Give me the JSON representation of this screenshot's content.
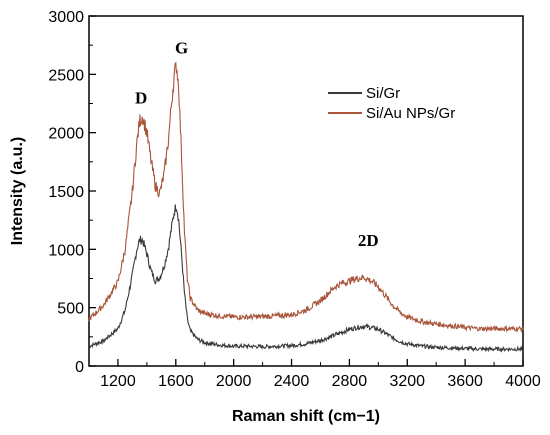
{
  "chart_data": {
    "type": "line",
    "xlabel": "Raman shift (cm−1)",
    "ylabel": "Intensity (a.u.)",
    "xlim": [
      1000,
      4000
    ],
    "ylim": [
      0,
      3000
    ],
    "xticks": [
      1200,
      1600,
      2000,
      2400,
      2800,
      3200,
      3600,
      4000
    ],
    "yticks": [
      0,
      500,
      1000,
      1500,
      2000,
      2500,
      3000
    ],
    "legend_position": "top-right",
    "grid": false,
    "annotations": [
      {
        "text": "D",
        "x": 1360,
        "y": 2250
      },
      {
        "text": "G",
        "x": 1640,
        "y": 2680
      },
      {
        "text": "2D",
        "x": 2930,
        "y": 1030
      }
    ],
    "series": [
      {
        "name": "Si/Gr",
        "color": "#3a3a3a",
        "x": [
          1000,
          1100,
          1200,
          1250,
          1300,
          1330,
          1350,
          1370,
          1400,
          1430,
          1460,
          1490,
          1520,
          1550,
          1570,
          1590,
          1605,
          1620,
          1640,
          1660,
          1680,
          1700,
          1750,
          1800,
          1900,
          2000,
          2100,
          2200,
          2300,
          2400,
          2500,
          2600,
          2650,
          2700,
          2750,
          2800,
          2850,
          2900,
          2950,
          3000,
          3050,
          3100,
          3150,
          3200,
          3300,
          3400,
          3500,
          3600,
          3700,
          3800,
          3900,
          4000
        ],
        "y": [
          170,
          215,
          320,
          480,
          780,
          1000,
          1080,
          1080,
          960,
          810,
          730,
          760,
          860,
          1020,
          1180,
          1330,
          1380,
          1250,
          950,
          620,
          400,
          300,
          230,
          200,
          180,
          170,
          170,
          165,
          170,
          175,
          190,
          220,
          240,
          265,
          290,
          315,
          330,
          340,
          330,
          315,
          280,
          240,
          210,
          190,
          170,
          160,
          155,
          150,
          145,
          145,
          145,
          145
        ]
      },
      {
        "name": "Si/Au NPs/Gr",
        "color": "#a8553a",
        "x": [
          1000,
          1100,
          1200,
          1250,
          1300,
          1330,
          1350,
          1370,
          1400,
          1430,
          1460,
          1490,
          1520,
          1550,
          1570,
          1590,
          1605,
          1620,
          1640,
          1660,
          1680,
          1700,
          1750,
          1800,
          1900,
          2000,
          2100,
          2200,
          2300,
          2400,
          2500,
          2600,
          2650,
          2700,
          2750,
          2800,
          2850,
          2900,
          2950,
          3000,
          3050,
          3100,
          3150,
          3200,
          3300,
          3400,
          3500,
          3600,
          3700,
          3800,
          3900,
          4000
        ],
        "y": [
          400,
          520,
          720,
          1000,
          1500,
          1900,
          2100,
          2140,
          2000,
          1750,
          1540,
          1480,
          1650,
          1950,
          2250,
          2500,
          2580,
          2400,
          1800,
          1150,
          750,
          580,
          480,
          450,
          430,
          420,
          420,
          425,
          430,
          440,
          480,
          560,
          620,
          680,
          710,
          730,
          750,
          760,
          730,
          680,
          600,
          520,
          460,
          420,
          380,
          360,
          345,
          330,
          320,
          320,
          320,
          320
        ]
      }
    ]
  }
}
